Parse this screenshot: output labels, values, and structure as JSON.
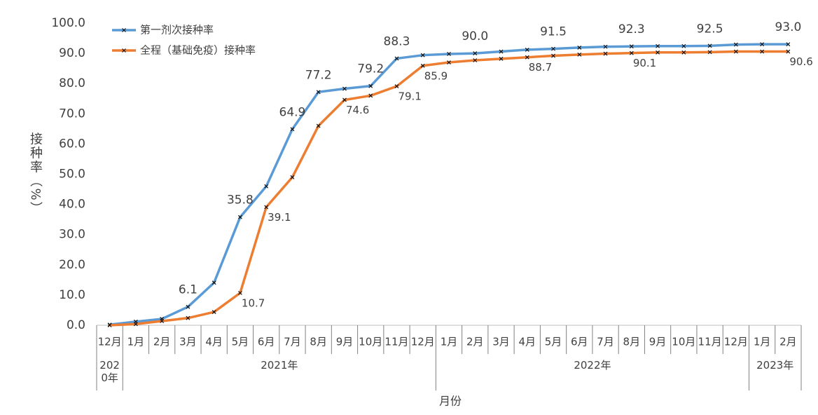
{
  "chart_data": {
    "type": "line",
    "y_label": "接种率（%）",
    "x_label": "月份",
    "categories": [
      "12月",
      "1月",
      "2月",
      "3月",
      "4月",
      "5月",
      "6月",
      "7月",
      "8月",
      "9月",
      "10月",
      "11月",
      "12月",
      "1月",
      "2月",
      "3月",
      "4月",
      "5月",
      "6月",
      "7月",
      "8月",
      "9月",
      "10月",
      "11月",
      "12月",
      "1月",
      "2月"
    ],
    "x_groups": [
      "2020年",
      "2021年",
      "2022年",
      "2023年"
    ],
    "series": [
      {
        "name": "第一剂次接种率",
        "color": "#5b9bd5",
        "values": [
          0.2,
          1.2,
          2.1,
          6.1,
          14.1,
          35.8,
          46.0,
          64.9,
          77.2,
          78.3,
          79.2,
          88.3,
          89.4,
          89.8,
          90.0,
          90.6,
          91.2,
          91.5,
          91.9,
          92.2,
          92.3,
          92.4,
          92.4,
          92.5,
          92.9,
          93.0,
          93.0
        ],
        "value_labels": [
          null,
          null,
          null,
          "6.1",
          null,
          "35.8",
          null,
          "64.9",
          "77.2",
          null,
          "79.2",
          "88.3",
          null,
          null,
          "90.0",
          null,
          null,
          "91.5",
          null,
          null,
          "92.3",
          null,
          null,
          "92.5",
          null,
          null,
          "93.0"
        ]
      },
      {
        "name": "全程（基础免疫）接种率",
        "color": "#ed7d31",
        "values": [
          0.0,
          0.4,
          1.4,
          2.4,
          4.4,
          10.7,
          39.1,
          49.0,
          66.0,
          74.6,
          76.0,
          79.1,
          85.9,
          87.0,
          87.7,
          88.2,
          88.7,
          89.2,
          89.6,
          89.9,
          90.1,
          90.3,
          90.3,
          90.4,
          90.6,
          90.6,
          90.6
        ],
        "value_labels": [
          null,
          null,
          null,
          null,
          null,
          "10.7",
          "39.1",
          null,
          null,
          "74.6",
          null,
          "79.1",
          "85.9",
          null,
          null,
          null,
          "88.7",
          null,
          null,
          null,
          "90.1",
          null,
          null,
          null,
          null,
          null,
          "90.6"
        ]
      }
    ],
    "ylim": [
      0,
      100
    ],
    "yticks": [
      {
        "value": 0,
        "label": "0.0"
      },
      {
        "value": 10,
        "label": "10.0"
      },
      {
        "value": 20,
        "label": "20.0"
      },
      {
        "value": 30,
        "label": "30.0"
      },
      {
        "value": 40,
        "label": "40.0"
      },
      {
        "value": 50,
        "label": "50.0"
      },
      {
        "value": 60,
        "label": "60.0"
      },
      {
        "value": 70,
        "label": "70.0"
      },
      {
        "value": 80,
        "label": "80.0"
      },
      {
        "value": 90,
        "label": "90.0"
      },
      {
        "value": 100,
        "label": "100.0"
      }
    ],
    "grid": false,
    "legend": "top-left"
  }
}
